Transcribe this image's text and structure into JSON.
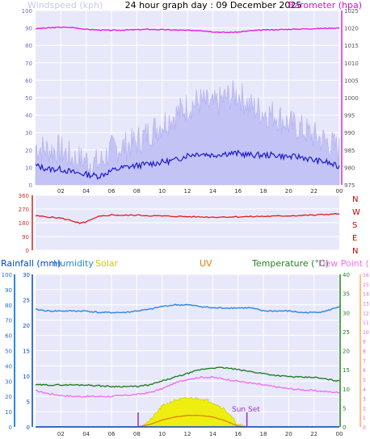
{
  "header": {
    "title": "24 hour graph day : 09 December 2025",
    "left_label": "Windspeed (kph)",
    "right_label": "Barometer (hpa)"
  },
  "colors": {
    "plot_bg": "#e8e8fb",
    "wind_gust": "#c3c3f6",
    "wind_avg": "#1a1acc",
    "barometer": "#e020e0",
    "direction": "#dd1c1c",
    "compass": "#cc0000",
    "rain": "#0044cc",
    "humidity": "#2a88dd",
    "solar": "#dddd00",
    "uv": "#e08000",
    "temperature": "#208020",
    "dew_point": "#f070f0",
    "sun_marker": "#9933cc"
  },
  "chart_data": [
    {
      "type": "area",
      "name": "wind_barometer",
      "x_ticks": [
        "02",
        "04",
        "06",
        "08",
        "10",
        "12",
        "14",
        "16",
        "18",
        "20",
        "22",
        "00"
      ],
      "ylim_wind": [
        0,
        100
      ],
      "wind_ticks": [
        "0",
        "10",
        "20",
        "30",
        "40",
        "50",
        "60",
        "70",
        "80",
        "90",
        "100"
      ],
      "ylim_baro": [
        975,
        1025
      ],
      "baro_ticks": [
        "975",
        "980",
        "985",
        "990",
        "995",
        "1000",
        "1005",
        "1010",
        "1015",
        "1020",
        "1025"
      ],
      "x_hours": [
        0,
        1,
        2,
        3,
        4,
        5,
        6,
        7,
        8,
        9,
        10,
        11,
        12,
        13,
        14,
        15,
        16,
        17,
        18,
        19,
        20,
        21,
        22,
        23,
        24
      ],
      "series": [
        {
          "name": "Windspeed (kph)",
          "key": "wind_avg",
          "values": [
            11,
            9,
            9,
            7,
            6,
            5,
            8,
            10,
            11,
            12,
            13,
            14,
            17,
            18,
            17,
            18,
            18,
            17,
            17,
            17,
            16,
            16,
            14,
            13,
            10
          ]
        },
        {
          "name": "gust",
          "key": "wind_gust",
          "values": [
            22,
            20,
            20,
            15,
            14,
            12,
            20,
            22,
            25,
            30,
            35,
            40,
            45,
            48,
            45,
            50,
            52,
            45,
            42,
            40,
            35,
            32,
            28,
            25,
            20
          ]
        },
        {
          "name": "Barometer (hpa)",
          "key": "barometer",
          "values": [
            1019.8,
            1020,
            1020.2,
            1020.1,
            1019.6,
            1019.4,
            1019.3,
            1019.4,
            1019.5,
            1019.6,
            1019.5,
            1019.4,
            1019.3,
            1019.3,
            1018.9,
            1018.7,
            1018.8,
            1019.2,
            1019.4,
            1019.5,
            1019.6,
            1019.7,
            1019.8,
            1019.9,
            1020
          ]
        }
      ]
    },
    {
      "type": "line",
      "name": "wind_direction",
      "x_ticks": [
        "02",
        "04",
        "06",
        "08",
        "10",
        "12",
        "14",
        "16",
        "18",
        "20",
        "22",
        "00"
      ],
      "ylim": [
        0,
        360
      ],
      "y_ticks": [
        "0",
        "90",
        "180",
        "270",
        "360"
      ],
      "compass": [
        "N",
        "W",
        "S",
        "E",
        "N"
      ],
      "x_hours": [
        0,
        1,
        2,
        3,
        3.5,
        4,
        5,
        6,
        7,
        8,
        9,
        10,
        11,
        12,
        13,
        14,
        15,
        16,
        17,
        18,
        19,
        20,
        21,
        22,
        23,
        24
      ],
      "series": [
        {
          "name": "Direction",
          "key": "direction",
          "values": [
            225,
            218,
            210,
            190,
            175,
            185,
            220,
            232,
            228,
            230,
            226,
            224,
            222,
            220,
            218,
            217,
            218,
            219,
            220,
            222,
            223,
            226,
            228,
            230,
            235,
            238
          ]
        }
      ]
    },
    {
      "type": "line",
      "name": "rain_humidity_temperature",
      "x_ticks": [
        "02",
        "04",
        "06",
        "08",
        "10",
        "12",
        "14",
        "16",
        "18",
        "20",
        "22",
        "00"
      ],
      "labels": {
        "rainfall": "Rainfall (mm)",
        "humidity": "Humidity",
        "solar": "Solar",
        "uv": "UV",
        "temperature": "Temperature (°C)",
        "dew_point": "Dew Point (°C)",
        "sun_set": "Sun Set"
      },
      "hum_ylim": [
        0,
        100
      ],
      "hum_ticks": [
        "0",
        "10",
        "20",
        "30",
        "40",
        "50",
        "60",
        "70",
        "80",
        "90",
        "100"
      ],
      "rain_ylim": [
        0,
        30
      ],
      "rain_ticks": [
        "0",
        "5",
        "10",
        "15",
        "20",
        "25",
        "30"
      ],
      "temp_ylim": [
        0,
        40
      ],
      "temp_ticks": [
        "0",
        "5",
        "10",
        "15",
        "20",
        "25",
        "30",
        "35",
        "40"
      ],
      "dew_ylim": [
        0,
        16
      ],
      "dew_ticks": [
        "0",
        "1",
        "2",
        "3",
        "4",
        "5",
        "6",
        "7",
        "8",
        "9",
        "10",
        "11",
        "12",
        "13",
        "14",
        "15",
        "16"
      ],
      "x_hours": [
        0,
        1,
        2,
        3,
        4,
        5,
        6,
        7,
        8,
        9,
        10,
        11,
        12,
        13,
        14,
        15,
        16,
        17,
        18,
        19,
        20,
        21,
        22,
        23,
        24
      ],
      "series": [
        {
          "name": "Humidity",
          "key": "humidity",
          "values": [
            77,
            76,
            76,
            76,
            76,
            75,
            75,
            75,
            76,
            77,
            79,
            80,
            80,
            79,
            78,
            78,
            78,
            78,
            76,
            76,
            76,
            75,
            75,
            76,
            79
          ]
        },
        {
          "name": "Temperature (°C)",
          "key": "temperature",
          "values": [
            11,
            11,
            11,
            11,
            11,
            10.8,
            10.6,
            10.6,
            10.6,
            11,
            12,
            13,
            14,
            15,
            15.5,
            15.5,
            15,
            14.5,
            14,
            13.5,
            13.2,
            13,
            13,
            12.5,
            12
          ]
        },
        {
          "name": "Dew Point (°C)",
          "key": "dew_point",
          "values": [
            3.8,
            3.5,
            3.3,
            3.2,
            3.2,
            3.2,
            3.2,
            3.3,
            3.4,
            3.6,
            4.0,
            4.6,
            5.0,
            5.2,
            5.2,
            5.0,
            4.8,
            4.6,
            4.4,
            4.2,
            4.0,
            3.9,
            3.8,
            3.7,
            3.6
          ]
        },
        {
          "name": "Solar",
          "key": "solar",
          "values": [
            0,
            0,
            0,
            0,
            0,
            0,
            0,
            0,
            0,
            1.5,
            5.5,
            7.0,
            7.5,
            7.5,
            6.5,
            4.5,
            0.5,
            0,
            0,
            0,
            0,
            0,
            0,
            0,
            0
          ]
        },
        {
          "name": "UV",
          "key": "uv",
          "values": [
            0,
            0,
            0,
            0,
            0,
            0,
            0,
            0,
            0,
            0.6,
            1.8,
            2.6,
            3.0,
            3.0,
            2.6,
            1.6,
            0.2,
            0,
            0,
            0,
            0,
            0,
            0,
            0,
            0
          ]
        },
        {
          "name": "Rainfall (mm)",
          "key": "rain",
          "values": [
            0,
            0,
            0,
            0,
            0,
            0,
            0,
            0,
            0,
            0,
            0,
            0,
            0,
            0,
            0,
            0,
            0,
            0,
            0,
            0,
            0,
            0,
            0,
            0,
            0
          ]
        }
      ],
      "sun_markers": [
        8.1,
        16.7
      ]
    }
  ]
}
